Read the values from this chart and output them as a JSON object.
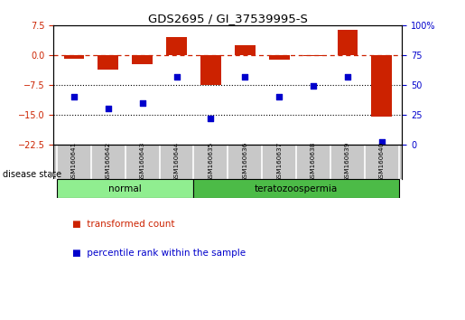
{
  "title": "GDS2695 / GI_37539995-S",
  "samples": [
    "GSM160641",
    "GSM160642",
    "GSM160643",
    "GSM160644",
    "GSM160635",
    "GSM160636",
    "GSM160637",
    "GSM160638",
    "GSM160639",
    "GSM160640"
  ],
  "transformed_count": [
    -0.8,
    -3.5,
    -2.2,
    4.5,
    -7.5,
    2.5,
    -1.0,
    -0.3,
    6.5,
    -15.5
  ],
  "percentile_rank": [
    40,
    30,
    35,
    57,
    22,
    57,
    40,
    49,
    57,
    2
  ],
  "groups": [
    {
      "label": "normal",
      "indices": [
        0,
        1,
        2,
        3
      ],
      "color": "#90EE90"
    },
    {
      "label": "teratozoospermia",
      "indices": [
        4,
        5,
        6,
        7,
        8,
        9
      ],
      "color": "#4CBB47"
    }
  ],
  "bar_color": "#CC2200",
  "dot_color": "#0000CC",
  "ylim_left": [
    -22.5,
    7.5
  ],
  "ylim_right": [
    0,
    100
  ],
  "yticks_left": [
    7.5,
    0,
    -7.5,
    -15,
    -22.5
  ],
  "yticks_right": [
    100,
    75,
    50,
    25,
    0
  ],
  "hline_y": 0,
  "dotted_lines": [
    -7.5,
    -15
  ],
  "background_color": "#ffffff",
  "plot_bg": "#ffffff",
  "sample_box_color": "#c8c8c8",
  "legend_items": [
    {
      "label": "transformed count",
      "color": "#CC2200"
    },
    {
      "label": "percentile rank within the sample",
      "color": "#0000CC"
    }
  ],
  "disease_state_label": "disease state"
}
